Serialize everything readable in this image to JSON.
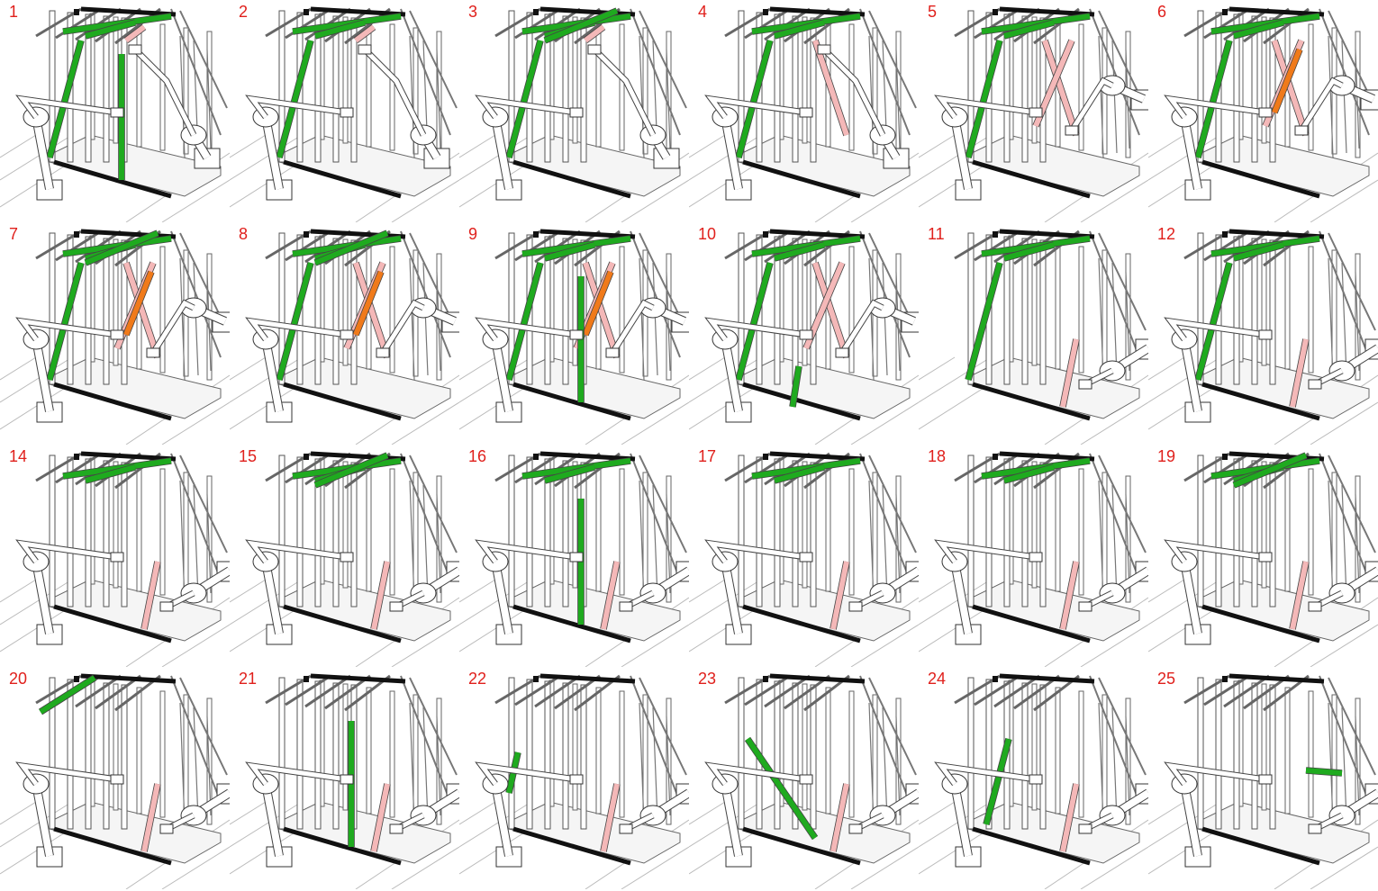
{
  "colors": {
    "active_member": "#1faa1f",
    "placed_member": "#f4b8b8",
    "held_member": "#f07a1a",
    "fixed_member": "#111111",
    "label": "#e0201c",
    "frame_line": "#555555"
  },
  "icons": {
    "robot": "industrial-robot-arm-icon",
    "frame": "timber-frame-structure"
  },
  "panels": [
    {
      "label": "1",
      "robots": [
        "left",
        "right"
      ],
      "green": [
        "roof",
        "diag",
        "stud"
      ],
      "pink": [
        "roofpink"
      ],
      "orange": []
    },
    {
      "label": "2",
      "robots": [
        "left",
        "right"
      ],
      "green": [
        "roof",
        "diag"
      ],
      "pink": [
        "roofpink"
      ],
      "orange": []
    },
    {
      "label": "3",
      "robots": [
        "left",
        "right"
      ],
      "green": [
        "roof",
        "diag",
        "roofdiag"
      ],
      "pink": [
        "roofpink"
      ],
      "orange": []
    },
    {
      "label": "4",
      "robots": [
        "left",
        "right"
      ],
      "green": [
        "roof",
        "diag"
      ],
      "pink": [
        "cross1"
      ],
      "orange": []
    },
    {
      "label": "5",
      "robots": [
        "left",
        "rightlow"
      ],
      "green": [
        "roof",
        "diag"
      ],
      "pink": [
        "cross1",
        "cross2"
      ],
      "orange": []
    },
    {
      "label": "6",
      "robots": [
        "left",
        "rightlow"
      ],
      "green": [
        "roof",
        "diag"
      ],
      "pink": [
        "cross1",
        "cross2"
      ],
      "orange": [
        "cross3"
      ]
    },
    {
      "label": "7",
      "robots": [
        "left",
        "rightlow"
      ],
      "green": [
        "roof",
        "diag",
        "roofdiag"
      ],
      "pink": [
        "cross1",
        "cross2"
      ],
      "orange": [
        "cross3"
      ]
    },
    {
      "label": "8",
      "robots": [
        "left",
        "rightlow"
      ],
      "green": [
        "roof",
        "diag",
        "roofdiag"
      ],
      "pink": [
        "cross1",
        "cross2"
      ],
      "orange": [
        "cross3"
      ]
    },
    {
      "label": "9",
      "robots": [
        "left",
        "rightlow"
      ],
      "green": [
        "roof",
        "diag",
        "stud"
      ],
      "pink": [
        "cross1",
        "cross2"
      ],
      "orange": [
        "cross3"
      ]
    },
    {
      "label": "10",
      "robots": [
        "left",
        "rightlow"
      ],
      "green": [
        "roof",
        "diag",
        "lowstud"
      ],
      "pink": [
        "cross1",
        "cross2"
      ],
      "orange": []
    },
    {
      "label": "11",
      "robots": [
        "rightfloor"
      ],
      "green": [
        "roof",
        "diag"
      ],
      "pink": [
        "lowpink"
      ],
      "orange": []
    },
    {
      "label": "12",
      "robots": [
        "left",
        "rightfloor"
      ],
      "green": [
        "roof",
        "diag"
      ],
      "pink": [
        "lowpink"
      ],
      "orange": []
    },
    {
      "label": "14",
      "robots": [
        "left",
        "rightfloor"
      ],
      "green": [
        "roof"
      ],
      "pink": [
        "lowpink"
      ],
      "orange": []
    },
    {
      "label": "15",
      "robots": [
        "left",
        "rightfloor"
      ],
      "green": [
        "roof",
        "roofdiag"
      ],
      "pink": [
        "lowpink"
      ],
      "orange": []
    },
    {
      "label": "16",
      "robots": [
        "left",
        "rightfloor"
      ],
      "green": [
        "roof",
        "stud"
      ],
      "pink": [
        "lowpink"
      ],
      "orange": []
    },
    {
      "label": "17",
      "robots": [
        "left",
        "rightfloor"
      ],
      "green": [
        "roof"
      ],
      "pink": [
        "lowpink"
      ],
      "orange": []
    },
    {
      "label": "18",
      "robots": [
        "left",
        "rightfloor"
      ],
      "green": [
        "roof"
      ],
      "pink": [
        "lowpink"
      ],
      "orange": []
    },
    {
      "label": "19",
      "robots": [
        "left",
        "rightfloor"
      ],
      "green": [
        "roof",
        "roofdiag"
      ],
      "pink": [
        "lowpink"
      ],
      "orange": []
    },
    {
      "label": "20",
      "robots": [
        "left",
        "rightfloor"
      ],
      "green": [
        "roofedge"
      ],
      "pink": [
        "lowpink"
      ],
      "orange": []
    },
    {
      "label": "21",
      "robots": [
        "left",
        "rightfloor"
      ],
      "green": [
        "stud"
      ],
      "pink": [
        "lowpink"
      ],
      "orange": []
    },
    {
      "label": "22",
      "robots": [
        "left",
        "rightfloor"
      ],
      "green": [
        "shortstud"
      ],
      "pink": [
        "lowpink"
      ],
      "orange": []
    },
    {
      "label": "23",
      "robots": [
        "left",
        "rightfloor"
      ],
      "green": [
        "longdiag"
      ],
      "pink": [
        "lowpink"
      ],
      "orange": []
    },
    {
      "label": "24",
      "robots": [
        "left",
        "rightfloor"
      ],
      "green": [
        "middiag"
      ],
      "pink": [
        "lowpink"
      ],
      "orange": []
    },
    {
      "label": "25",
      "robots": [
        "left",
        "rightfloor"
      ],
      "green": [
        "smallbar"
      ],
      "pink": [],
      "orange": []
    }
  ]
}
